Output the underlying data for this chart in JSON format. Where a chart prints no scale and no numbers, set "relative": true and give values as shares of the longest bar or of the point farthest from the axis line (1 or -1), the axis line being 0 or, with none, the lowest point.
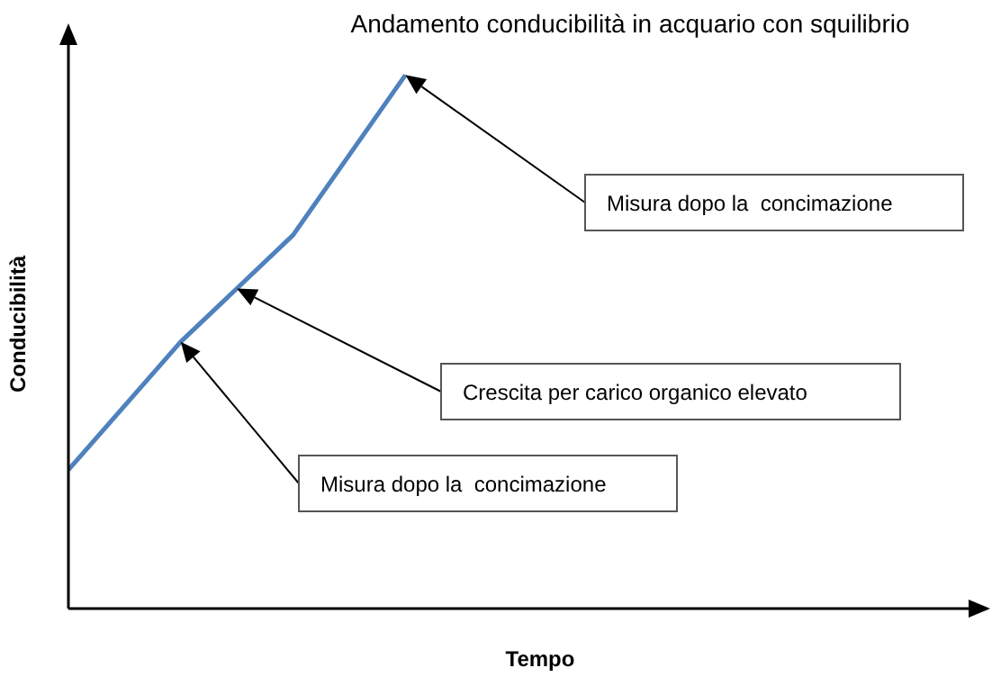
{
  "chart_data": {
    "type": "line",
    "title": "Andamento conducibilità in acquario con squilibrio",
    "xlabel": "Tempo",
    "ylabel": "Conducibilità",
    "relative": true,
    "categories": [
      null,
      null,
      null,
      null
    ],
    "legend": false,
    "grid": false,
    "marker": "none",
    "series": [
      {
        "color": "#4f81bd",
        "values": [
          0.26,
          0.5,
          0.7,
          1
        ]
      }
    ],
    "annotations": [
      "Misura dopo la  concimazione",
      "Crescita per carico organico elevato",
      "Misura dopo la  concimazione"
    ]
  }
}
